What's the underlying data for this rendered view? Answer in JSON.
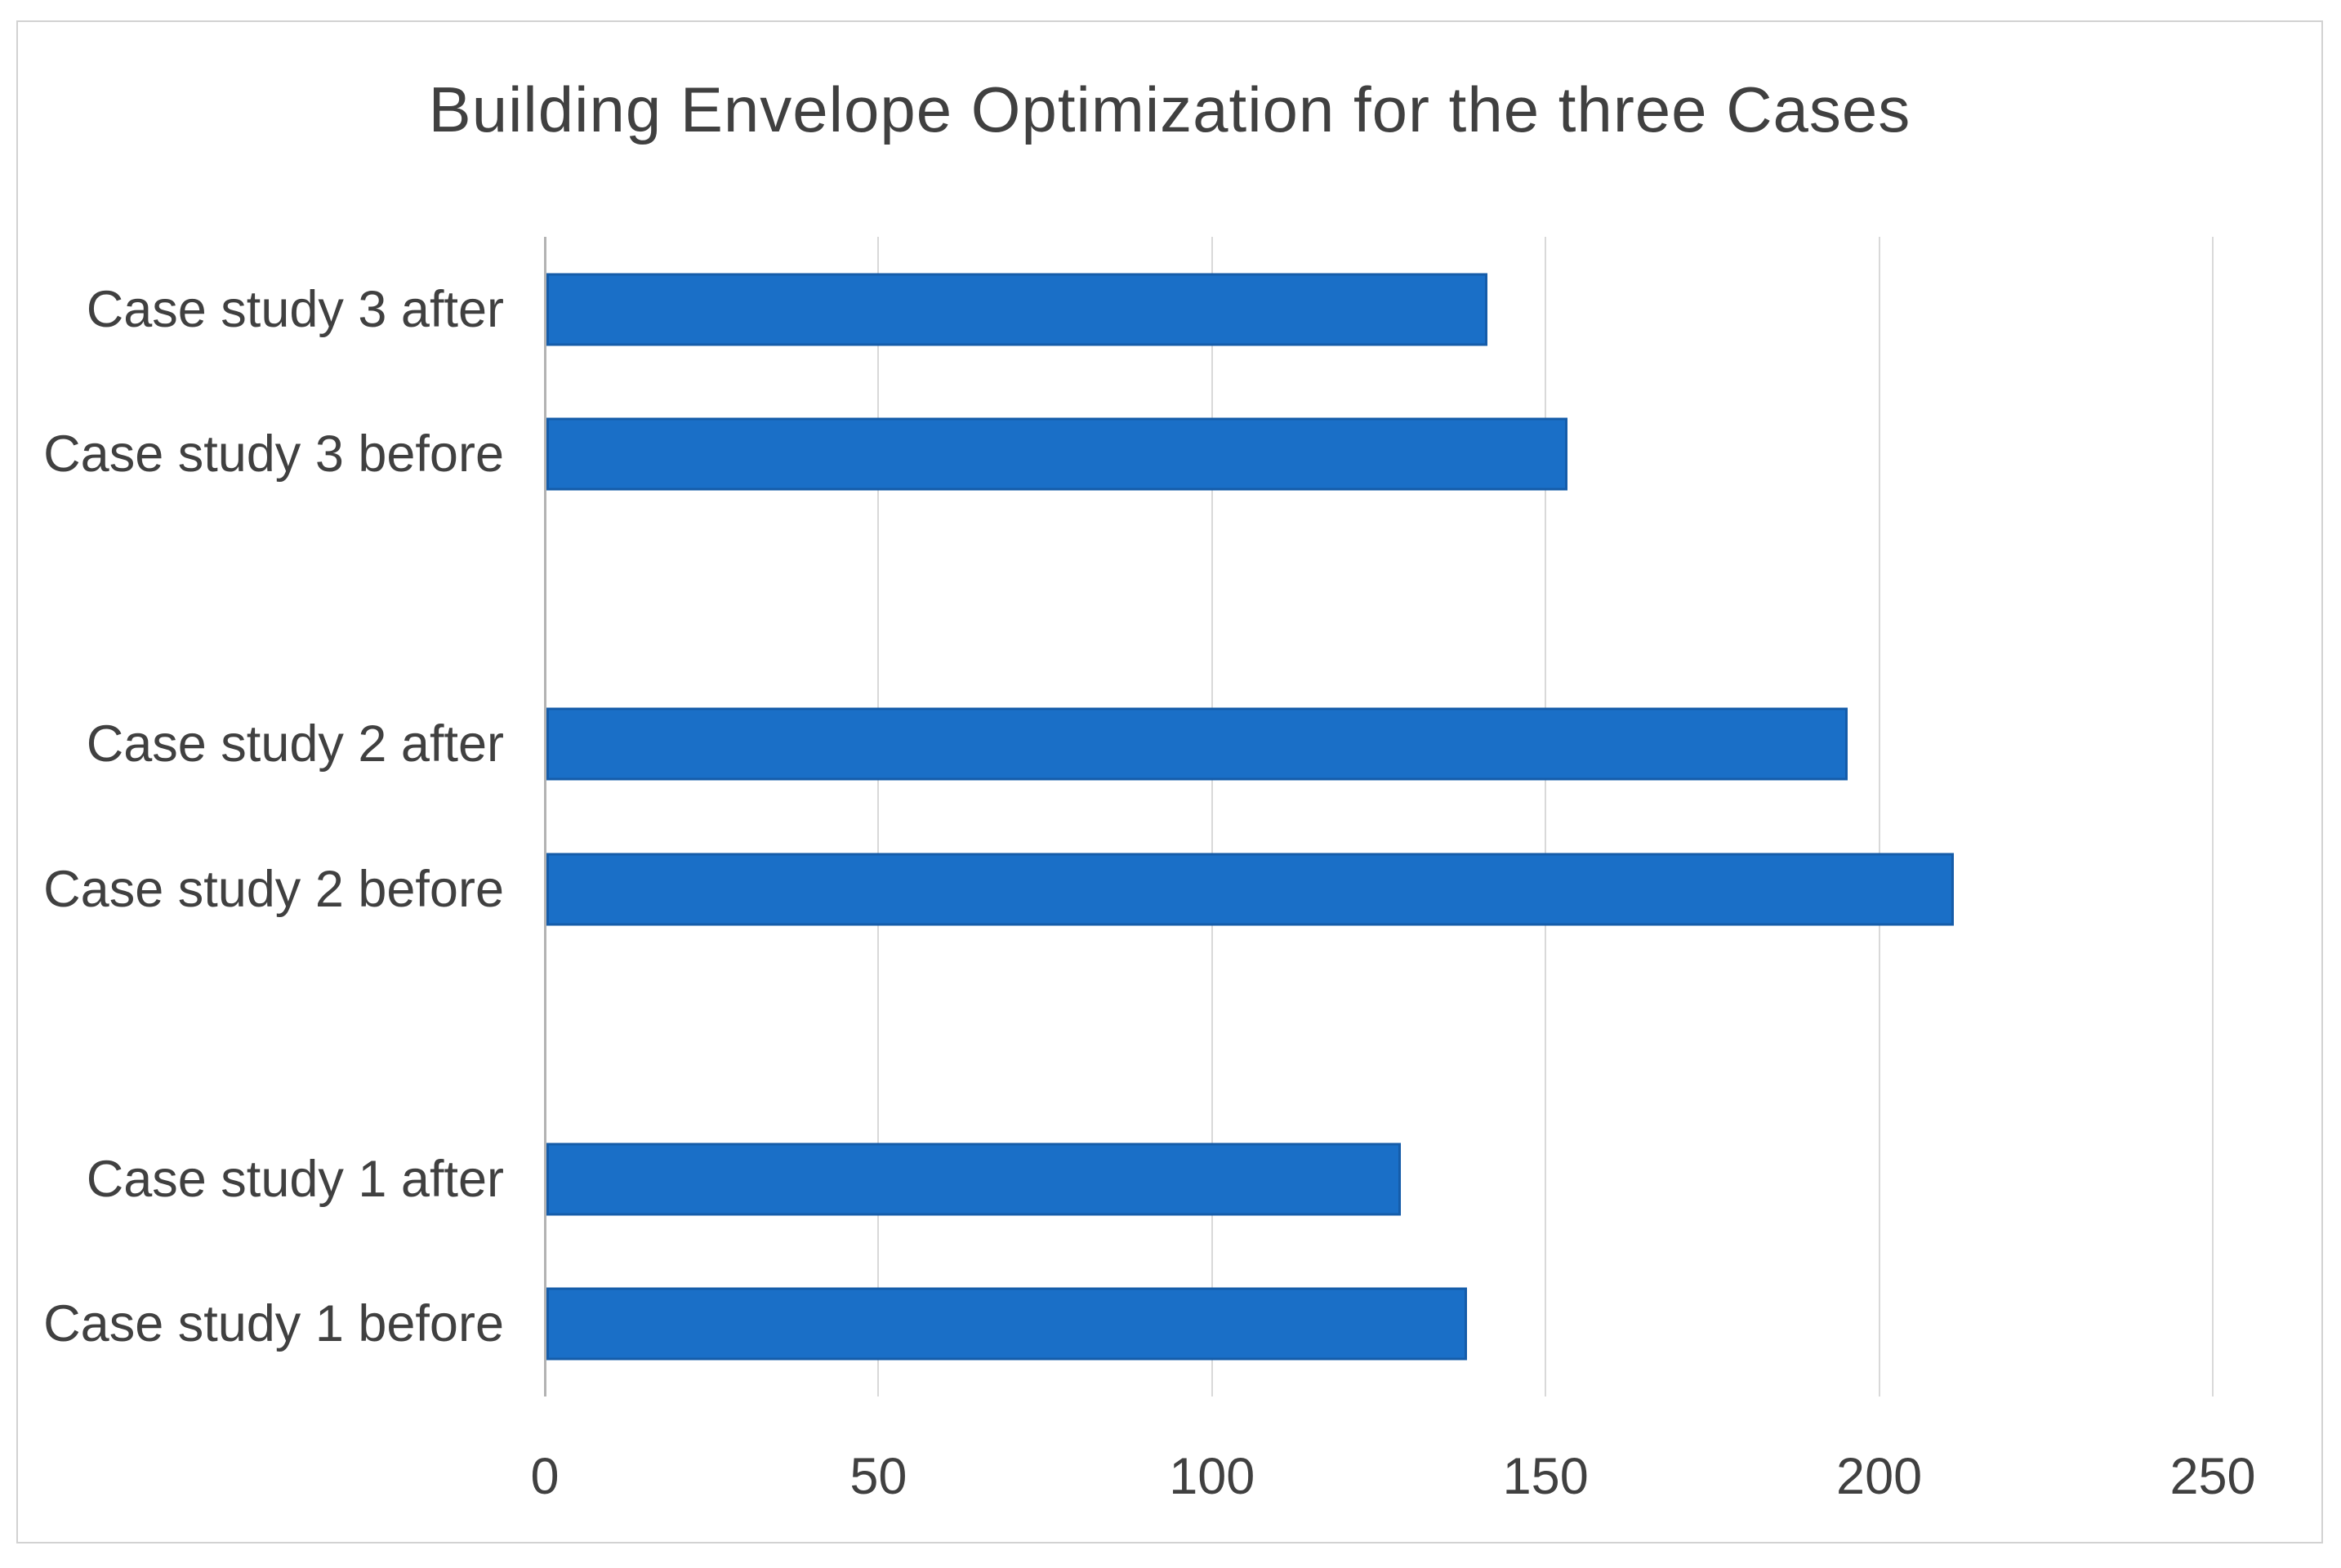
{
  "chart_data": {
    "type": "bar",
    "orientation": "horizontal",
    "title": "Building Envelope Optimization for the three Cases",
    "categories": [
      "Case study 3 after",
      "Case study 3 before",
      "Case study 2 after",
      "Case study 2 before",
      "Case study 1 after",
      "Case study 1 before"
    ],
    "values": [
      141,
      153,
      195,
      211,
      128,
      138
    ],
    "display_rows": [
      {
        "label": "Case study 3 after",
        "value": 141
      },
      {
        "label": "Case study 3 before",
        "value": 153
      },
      {
        "label": "",
        "value": null
      },
      {
        "label": "Case study 2 after",
        "value": 195
      },
      {
        "label": "Case study 2 before",
        "value": 211
      },
      {
        "label": "",
        "value": null
      },
      {
        "label": "Case study 1 after",
        "value": 128
      },
      {
        "label": "Case study 1 before",
        "value": 138
      }
    ],
    "xlabel": "",
    "ylabel": "",
    "xlim": [
      0,
      250
    ],
    "xticks": [
      0,
      50,
      100,
      150,
      200,
      250
    ],
    "grid": true,
    "legend": "none",
    "colors": {
      "bar_fill": "#1A6FC7",
      "bar_border": "#155CA9",
      "gridline": "#D9D9D9",
      "axis_line": "#B3B3B3",
      "text": "#404040",
      "chart_border": "#D2D2D2",
      "background": "#FFFFFF"
    }
  }
}
